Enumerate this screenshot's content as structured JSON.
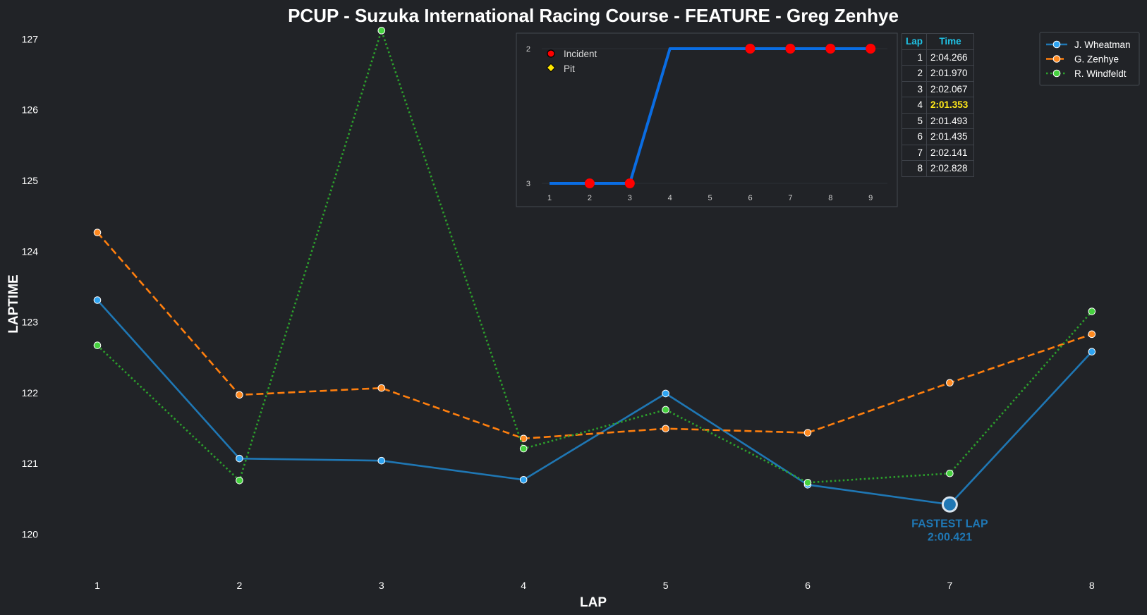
{
  "chart_data": [
    {
      "type": "line",
      "title": "PCUP - Suzuka International Racing Course - FEATURE - Greg Zenhye",
      "xlabel": "LAP",
      "ylabel": "LAPTIME",
      "x": [
        1,
        2,
        3,
        4,
        5,
        6,
        7,
        8
      ],
      "ylim": [
        119.4,
        127.2
      ],
      "yticks": [
        120,
        121,
        122,
        123,
        124,
        125,
        126,
        127
      ],
      "grid": false,
      "legend_position": "top-right",
      "series": [
        {
          "name": "J. Wheatman",
          "color": "#1f77b4",
          "marker_color": "#2ea4f2",
          "dash": "solid",
          "values": [
            123.31,
            121.07,
            121.04,
            120.77,
            121.99,
            120.7,
            120.421,
            122.58
          ]
        },
        {
          "name": "G. Zenhye",
          "color": "#ff7f0e",
          "marker_color": "#ff8a21",
          "dash": "dashed",
          "values": [
            124.266,
            121.97,
            122.067,
            121.353,
            121.493,
            121.435,
            122.141,
            122.828
          ]
        },
        {
          "name": "R. Windfeldt",
          "color": "#2ca02c",
          "marker_color": "#46d13f",
          "dash": "dotted",
          "values": [
            122.67,
            120.76,
            127.12,
            121.21,
            121.76,
            120.73,
            120.86,
            123.15
          ]
        }
      ],
      "annotation": {
        "series": "J. Wheatman",
        "lap": 7,
        "value": 120.421,
        "label_line1": "FASTEST LAP",
        "label_line2": "2:00.421",
        "color": "#1f77b4"
      }
    },
    {
      "type": "line",
      "title": "",
      "x": [
        1,
        2,
        3,
        4,
        5,
        6,
        7,
        8,
        9
      ],
      "y_ticks": [
        2,
        3
      ],
      "y_reversed": true,
      "values": [
        3,
        3,
        3,
        2,
        2,
        2,
        2,
        2,
        2
      ],
      "line_color": "#0a6de3",
      "incident_laps": [
        2,
        3,
        6,
        7,
        8,
        9
      ],
      "pit_laps": [],
      "legend": [
        {
          "name": "Incident",
          "color": "#ff0000"
        },
        {
          "name": "Pit",
          "color": "#ffe600"
        }
      ]
    },
    {
      "type": "table",
      "columns": [
        "Lap",
        "Time"
      ],
      "rows": [
        [
          "1",
          "2:04.266"
        ],
        [
          "2",
          "2:01.970"
        ],
        [
          "3",
          "2:02.067"
        ],
        [
          "4",
          "2:01.353"
        ],
        [
          "5",
          "2:01.493"
        ],
        [
          "6",
          "2:01.435"
        ],
        [
          "7",
          "2:02.141"
        ],
        [
          "8",
          "2:02.828"
        ]
      ],
      "best_row": 3,
      "header_color": "#1fc3e6",
      "best_color": "#ffe81a"
    }
  ]
}
